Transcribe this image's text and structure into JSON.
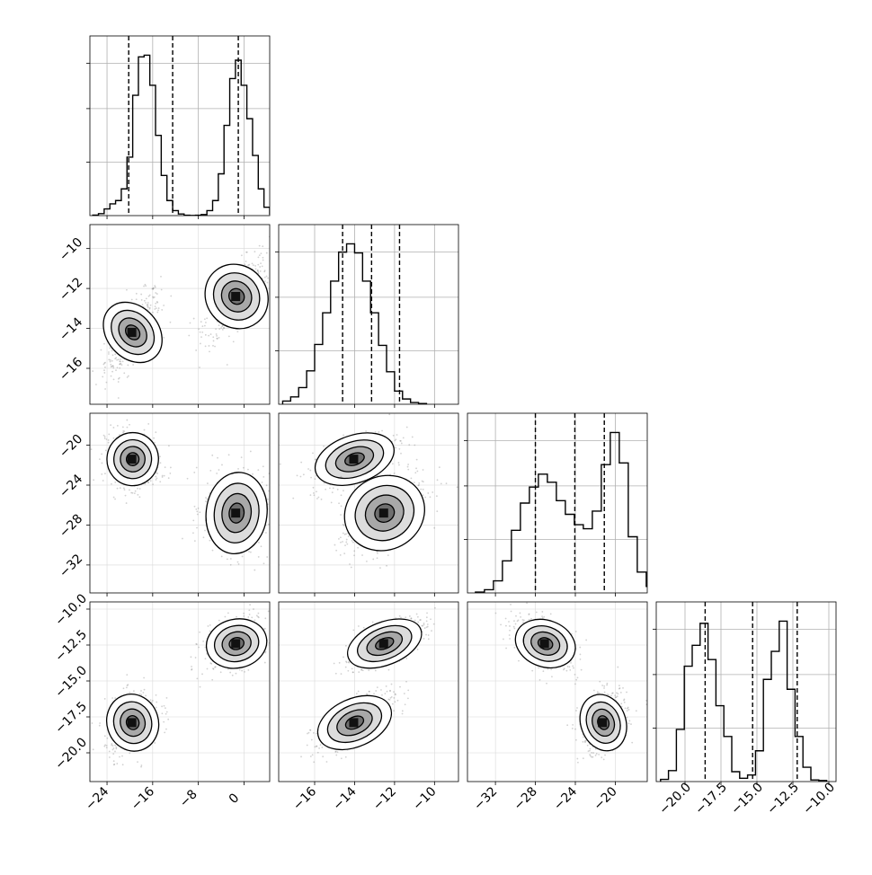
{
  "chart_data": {
    "type": "corner",
    "parameters": 4,
    "grid": true,
    "ticks": {
      "p0": [
        "-24",
        "-16",
        "-8",
        "0"
      ],
      "p1": [
        "-16",
        "-14",
        "-12",
        "-10"
      ],
      "p2": [
        "-32",
        "-28",
        "-24",
        "-20"
      ],
      "p3": [
        "-20.0",
        "-17.5",
        "-15.0",
        "-12.5",
        "-10.0"
      ],
      "row_p1": [
        "-10",
        "-12",
        "-14",
        "-16"
      ],
      "row_p2": [
        "-20",
        "-24",
        "-28",
        "-32"
      ],
      "row_p3": [
        "-10.0",
        "-12.5",
        "-15.0",
        "-17.5",
        "-20.0"
      ]
    },
    "ranges": {
      "p0": [
        -27.0,
        4.5
      ],
      "p1": [
        -17.8,
        -8.8
      ],
      "p2": [
        -34.8,
        -16.8
      ],
      "p3": [
        -22.0,
        -9.5
      ]
    },
    "quantile_lines": {
      "p0": [
        -20.2,
        -12.5,
        -1.0
      ],
      "p1": [
        -14.6,
        -13.15,
        -11.75
      ],
      "p2": [
        -28.0,
        -24.05,
        -21.1
      ],
      "p3": [
        -18.6,
        -15.3,
        -12.2
      ]
    },
    "histograms": {
      "p0": {
        "bin_start": -26.5,
        "bin_width": 1.0,
        "counts": [
          3,
          12,
          40,
          70,
          90,
          160,
          350,
          720,
          950,
          960,
          780,
          480,
          240,
          90,
          30,
          10,
          2,
          1,
          2,
          6,
          30,
          90,
          250,
          540,
          820,
          930,
          780,
          580,
          360,
          160,
          50,
          10,
          2
        ]
      },
      "p1": {
        "bin_start": -17.6,
        "bin_width": 0.4,
        "counts": [
          18,
          42,
          95,
          190,
          340,
          520,
          700,
          865,
          912,
          860,
          700,
          520,
          335,
          185,
          75,
          30,
          10,
          4
        ]
      },
      "p2": {
        "bin_start": -34.0,
        "bin_width": 0.9,
        "counts": [
          1,
          4,
          15,
          40,
          78,
          112,
          132,
          148,
          138,
          115,
          98,
          85,
          80,
          102,
          160,
          200,
          162,
          70,
          26,
          8
        ]
      },
      "p3": {
        "bin_start": -21.7,
        "bin_width": 0.55,
        "counts": [
          4,
          20,
          95,
          210,
          248,
          288,
          222,
          138,
          82,
          18,
          6,
          12,
          56,
          186,
          237,
          292,
          168,
          82,
          26,
          3,
          2
        ]
      }
    },
    "pair_modes": {
      "p1_vs_p0": [
        {
          "x": -19.5,
          "y": -14.2,
          "sx": 2.2,
          "sy": 0.95,
          "rho": 0.7
        },
        {
          "x": -1.3,
          "y": -12.4,
          "sx": 2.6,
          "sy": 0.95,
          "rho": 0.7
        }
      ],
      "p2_vs_p0": [
        {
          "x": -19.5,
          "y": -21.4,
          "sx": 2.2,
          "sy": 1.3,
          "rho": -0.1
        },
        {
          "x": -1.3,
          "y": -26.8,
          "sx": 2.6,
          "sy": 2.0,
          "rho": -0.1
        }
      ],
      "p2_vs_p1": [
        {
          "x": -14.0,
          "y": -21.4,
          "sx": 1.0,
          "sy": 1.3,
          "rho": 0.6
        },
        {
          "x": -12.5,
          "y": -26.8,
          "sx": 1.0,
          "sy": 2.0,
          "rho": 0.6
        }
      ],
      "p3_vs_p0": [
        {
          "x": -19.5,
          "y": -17.9,
          "sx": 2.2,
          "sy": 1.0,
          "rho": 0.3
        },
        {
          "x": -1.3,
          "y": -12.4,
          "sx": 2.6,
          "sy": 0.85,
          "rho": 0.3
        }
      ],
      "p3_vs_p1": [
        {
          "x": -14.0,
          "y": -17.9,
          "sx": 0.95,
          "sy": 0.95,
          "rho": 0.7
        },
        {
          "x": -12.5,
          "y": -12.4,
          "sx": 0.95,
          "sy": 0.85,
          "rho": 0.7
        }
      ],
      "p3_vs_p2": [
        {
          "x": -27.0,
          "y": -12.4,
          "sx": 1.5,
          "sy": 0.85,
          "rho": -0.5
        },
        {
          "x": -21.2,
          "y": -17.9,
          "sx": 1.1,
          "sy": 1.0,
          "rho": 0.3
        }
      ]
    }
  }
}
